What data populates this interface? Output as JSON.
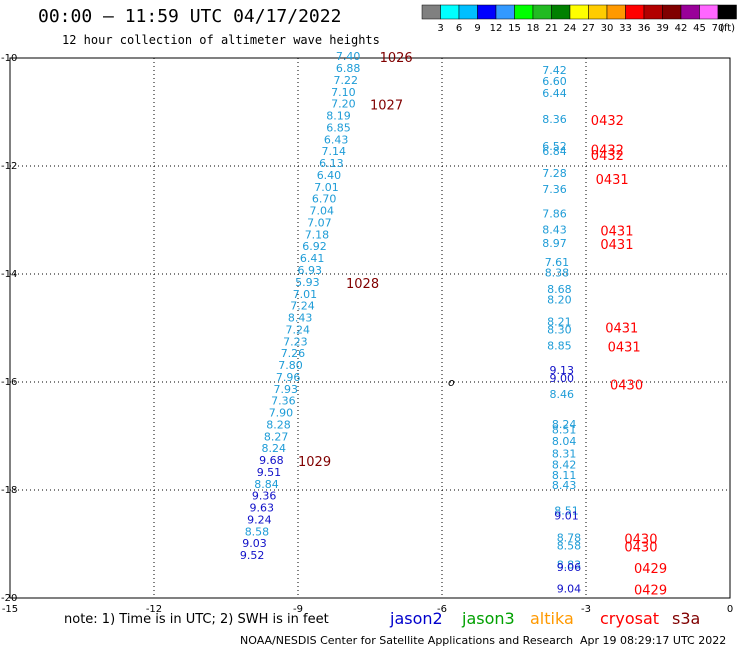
{
  "header": {
    "title": "00:00 – 11:59 UTC 04/17/2022",
    "subtitle": "12 hour collection of altimeter wave heights"
  },
  "colorbar": {
    "labels": [
      "3",
      "6",
      "9",
      "12",
      "15",
      "18",
      "21",
      "24",
      "27",
      "30",
      "33",
      "36",
      "39",
      "42",
      "45",
      "70",
      "(ft)"
    ],
    "colors": [
      "#808080",
      "#00ffff",
      "#00bfff",
      "#0000ff",
      "#3399ff",
      "#00ff00",
      "#22bb22",
      "#008000",
      "#ffff00",
      "#ffcc00",
      "#ff9900",
      "#ff0000",
      "#b20000",
      "#800000",
      "#990099",
      "#ff66ff",
      "#000000"
    ]
  },
  "footer": {
    "credit": "NOAA/NESDIS Center for Satellite Applications and Research",
    "timestamp": "Apr 19 08:29:17 UTC 2022",
    "note": "note:  1) Time is in UTC;  2) SWH is in feet"
  },
  "satellites": [
    {
      "name": "jason2",
      "color": "#0000cc"
    },
    {
      "name": "jason3",
      "color": "#00a000"
    },
    {
      "name": "altika",
      "color": "#ff9900"
    },
    {
      "name": "cryosat",
      "color": "#ff0000"
    },
    {
      "name": "s3a",
      "color": "#800000"
    }
  ],
  "chart_data": {
    "type": "scatter",
    "title": "00:00 – 11:59 UTC 04/17/2022",
    "xlim": [
      -15,
      0
    ],
    "ylim": [
      -20,
      -10
    ],
    "x_ticks": [
      "-15",
      "-12",
      "-9",
      "-6",
      "-3",
      "0"
    ],
    "y_ticks": [
      "-10",
      "-12",
      "-14",
      "-16",
      "-18",
      "-20"
    ],
    "origin_marker": "o",
    "grid": true,
    "series": [
      {
        "name": "altimeter wave heights (track 1)",
        "color": "#1e9cd7",
        "points": [
          {
            "x": -7.7,
            "y": -10.04,
            "v": "7.40"
          },
          {
            "x": -7.7,
            "y": -10.26,
            "v": "6.88"
          },
          {
            "x": -7.75,
            "y": -10.48,
            "v": "7.22"
          },
          {
            "x": -7.8,
            "y": -10.7,
            "v": "7.10"
          },
          {
            "x": -7.8,
            "y": -10.92,
            "v": "7.20"
          },
          {
            "x": -7.9,
            "y": -11.14,
            "v": "8.19"
          },
          {
            "x": -7.9,
            "y": -11.36,
            "v": "6.85"
          },
          {
            "x": -7.95,
            "y": -11.58,
            "v": "6.43"
          },
          {
            "x": -8.0,
            "y": -11.8,
            "v": "7.14"
          },
          {
            "x": -8.05,
            "y": -12.02,
            "v": "6.13"
          },
          {
            "x": -8.1,
            "y": -12.24,
            "v": "6.40"
          },
          {
            "x": -8.15,
            "y": -12.46,
            "v": "7.01"
          },
          {
            "x": -8.2,
            "y": -12.68,
            "v": "6.70"
          },
          {
            "x": -8.25,
            "y": -12.9,
            "v": "7.04"
          },
          {
            "x": -8.3,
            "y": -13.12,
            "v": "7.07"
          },
          {
            "x": -8.35,
            "y": -13.34,
            "v": "7.18"
          },
          {
            "x": -8.4,
            "y": -13.56,
            "v": "6.92"
          },
          {
            "x": -8.45,
            "y": -13.78,
            "v": "6.41"
          },
          {
            "x": -8.5,
            "y": -14.0,
            "v": "6.93"
          },
          {
            "x": -8.55,
            "y": -14.22,
            "v": "5.93"
          },
          {
            "x": -8.6,
            "y": -14.44,
            "v": "7.01"
          },
          {
            "x": -8.65,
            "y": -14.66,
            "v": "7.24"
          },
          {
            "x": -8.7,
            "y": -14.88,
            "v": "8.43"
          },
          {
            "x": -8.75,
            "y": -15.1,
            "v": "7.24"
          },
          {
            "x": -8.8,
            "y": -15.32,
            "v": "7.23"
          },
          {
            "x": -8.85,
            "y": -15.54,
            "v": "7.26"
          },
          {
            "x": -8.9,
            "y": -15.76,
            "v": "7.80"
          },
          {
            "x": -8.95,
            "y": -15.98,
            "v": "7.96"
          },
          {
            "x": -9.0,
            "y": -16.2,
            "v": "7.93"
          },
          {
            "x": -9.05,
            "y": -16.42,
            "v": "7.36"
          },
          {
            "x": -9.1,
            "y": -16.64,
            "v": "7.90"
          },
          {
            "x": -9.15,
            "y": -16.86,
            "v": "8.28"
          },
          {
            "x": -9.2,
            "y": -17.08,
            "v": "8.27"
          },
          {
            "x": -9.25,
            "y": -17.3,
            "v": "8.24"
          },
          {
            "x": -9.3,
            "y": -17.52,
            "v": "9.68"
          },
          {
            "x": -9.35,
            "y": -17.74,
            "v": "9.51"
          },
          {
            "x": -9.4,
            "y": -17.96,
            "v": "8.84"
          },
          {
            "x": -9.45,
            "y": -18.18,
            "v": "9.36"
          },
          {
            "x": -9.5,
            "y": -18.4,
            "v": "9.63"
          },
          {
            "x": -9.55,
            "y": -18.62,
            "v": "9.24"
          },
          {
            "x": -9.6,
            "y": -18.84,
            "v": "8.58"
          },
          {
            "x": -9.65,
            "y": -19.06,
            "v": "9.03"
          },
          {
            "x": -9.7,
            "y": -19.28,
            "v": "9.52"
          }
        ]
      },
      {
        "name": "altimeter wave heights (track 2)",
        "color": "#1e9cd7",
        "points": [
          {
            "x": -3.4,
            "y": -10.3,
            "v": "7.42"
          },
          {
            "x": -3.4,
            "y": -10.5,
            "v": "6.60"
          },
          {
            "x": -3.4,
            "y": -10.72,
            "v": "6.44"
          },
          {
            "x": -3.4,
            "y": -11.2,
            "v": "8.36"
          },
          {
            "x": -3.4,
            "y": -11.7,
            "v": "6.52"
          },
          {
            "x": -3.4,
            "y": -11.8,
            "v": "6.84"
          },
          {
            "x": -3.4,
            "y": -12.2,
            "v": "7.28"
          },
          {
            "x": -3.4,
            "y": -12.5,
            "v": "7.36"
          },
          {
            "x": -3.4,
            "y": -12.95,
            "v": "7.86"
          },
          {
            "x": -3.4,
            "y": -13.25,
            "v": "8.43"
          },
          {
            "x": -3.4,
            "y": -13.5,
            "v": "8.97"
          },
          {
            "x": -3.35,
            "y": -13.85,
            "v": "7.61"
          },
          {
            "x": -3.35,
            "y": -14.05,
            "v": "8.38"
          },
          {
            "x": -3.3,
            "y": -14.35,
            "v": "8.68"
          },
          {
            "x": -3.3,
            "y": -14.55,
            "v": "8.20"
          },
          {
            "x": -3.3,
            "y": -14.95,
            "v": "8.21"
          },
          {
            "x": -3.3,
            "y": -15.1,
            "v": "8.30"
          },
          {
            "x": -3.3,
            "y": -15.4,
            "v": "8.85"
          },
          {
            "x": -3.25,
            "y": -15.85,
            "v": "9.13"
          },
          {
            "x": -3.25,
            "y": -16.0,
            "v": "9.00"
          },
          {
            "x": -3.25,
            "y": -16.3,
            "v": "8.46"
          },
          {
            "x": -3.2,
            "y": -16.85,
            "v": "8.24"
          },
          {
            "x": -3.2,
            "y": -16.95,
            "v": "8.51"
          },
          {
            "x": -3.2,
            "y": -17.17,
            "v": "8.04"
          },
          {
            "x": -3.2,
            "y": -17.4,
            "v": "8.31"
          },
          {
            "x": -3.2,
            "y": -17.6,
            "v": "8.42"
          },
          {
            "x": -3.2,
            "y": -17.8,
            "v": "8.11"
          },
          {
            "x": -3.2,
            "y": -17.98,
            "v": "8.43"
          },
          {
            "x": -3.15,
            "y": -18.45,
            "v": "8.51"
          },
          {
            "x": -3.15,
            "y": -18.55,
            "v": "9.01"
          },
          {
            "x": -3.1,
            "y": -18.95,
            "v": "8.78"
          },
          {
            "x": -3.1,
            "y": -19.1,
            "v": "8.58"
          },
          {
            "x": -3.1,
            "y": -19.45,
            "v": "8.83"
          },
          {
            "x": -3.1,
            "y": -19.5,
            "v": "9.06"
          },
          {
            "x": -3.1,
            "y": -19.9,
            "v": "9.04"
          }
        ]
      }
    ],
    "time_labels": [
      {
        "x": -7.3,
        "y": -10.04,
        "label": "1026",
        "color": "#800000"
      },
      {
        "x": -7.5,
        "y": -10.92,
        "label": "1027",
        "color": "#800000"
      },
      {
        "x": -8.0,
        "y": -14.22,
        "label": "1028",
        "color": "#800000"
      },
      {
        "x": -9.0,
        "y": -17.52,
        "label": "1029",
        "color": "#800000"
      },
      {
        "x": -2.9,
        "y": -11.2,
        "label": "0432",
        "color": "#ff0000"
      },
      {
        "x": -2.9,
        "y": -11.75,
        "label": "0432",
        "color": "#ff0000"
      },
      {
        "x": -2.9,
        "y": -11.85,
        "label": "0432",
        "color": "#ff0000"
      },
      {
        "x": -2.8,
        "y": -12.3,
        "label": "0431",
        "color": "#ff0000"
      },
      {
        "x": -2.7,
        "y": -13.25,
        "label": "0431",
        "color": "#ff0000"
      },
      {
        "x": -2.7,
        "y": -13.5,
        "label": "0431",
        "color": "#ff0000"
      },
      {
        "x": -2.6,
        "y": -15.05,
        "label": "0431",
        "color": "#ff0000"
      },
      {
        "x": -2.55,
        "y": -15.4,
        "label": "0431",
        "color": "#ff0000"
      },
      {
        "x": -2.5,
        "y": -16.1,
        "label": "0430",
        "color": "#ff0000"
      },
      {
        "x": -2.2,
        "y": -18.95,
        "label": "0430",
        "color": "#ff0000"
      },
      {
        "x": -2.2,
        "y": -19.1,
        "label": "0430",
        "color": "#ff0000"
      },
      {
        "x": -2.0,
        "y": -19.5,
        "label": "0429",
        "color": "#ff0000"
      },
      {
        "x": -2.0,
        "y": -19.9,
        "label": "0429",
        "color": "#ff0000"
      }
    ]
  }
}
